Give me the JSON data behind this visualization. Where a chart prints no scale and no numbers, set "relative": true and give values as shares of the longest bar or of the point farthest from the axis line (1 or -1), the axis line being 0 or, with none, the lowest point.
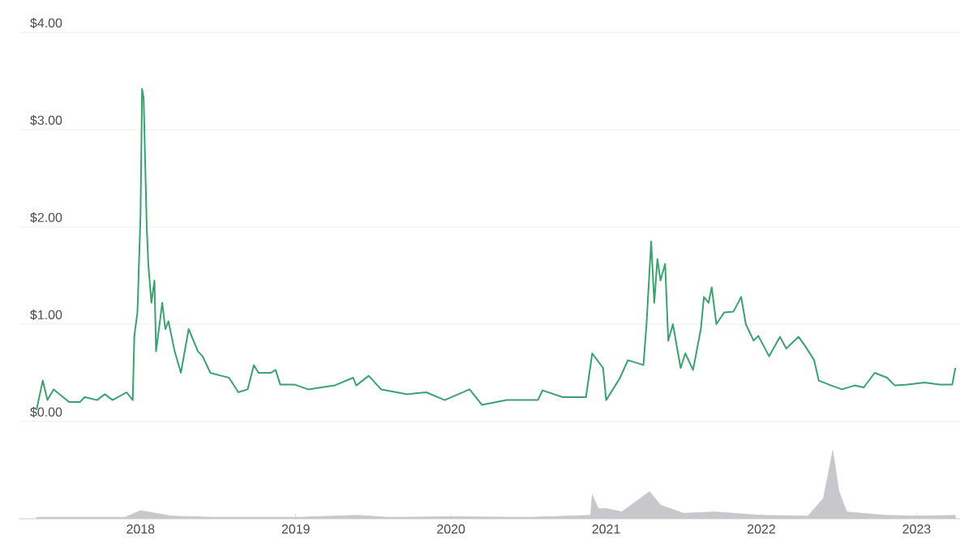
{
  "chart_data": [
    {
      "type": "line",
      "color": "#3aa26e",
      "grid": "y",
      "tick_labels": "y",
      "xlim": [
        2017.22,
        2023.28
      ],
      "ylim": [
        0,
        4
      ],
      "yticks": [
        {
          "value": 0,
          "label": "$0.00"
        },
        {
          "value": 1,
          "label": "$1.00"
        },
        {
          "value": 2,
          "label": "$2.00"
        },
        {
          "value": 3,
          "label": "$3.00"
        },
        {
          "value": 4,
          "label": "$4.00"
        }
      ],
      "x": [
        2017.33,
        2017.37,
        2017.4,
        2017.44,
        2017.54,
        2017.61,
        2017.64,
        2017.72,
        2017.77,
        2017.82,
        2017.91,
        2017.95,
        2017.96,
        2017.98,
        2018.0,
        2018.01,
        2018.02,
        2018.04,
        2018.05,
        2018.07,
        2018.09,
        2018.1,
        2018.14,
        2018.16,
        2018.18,
        2018.22,
        2018.26,
        2018.31,
        2018.37,
        2018.4,
        2018.45,
        2018.52,
        2018.57,
        2018.63,
        2018.69,
        2018.73,
        2018.76,
        2018.84,
        2018.87,
        2018.9,
        2018.99,
        2019.08,
        2019.25,
        2019.37,
        2019.39,
        2019.47,
        2019.55,
        2019.72,
        2019.84,
        2019.96,
        2020.12,
        2020.2,
        2020.36,
        2020.56,
        2020.59,
        2020.72,
        2020.87,
        2020.91,
        2020.98,
        2021.0,
        2021.09,
        2021.14,
        2021.24,
        2021.26,
        2021.29,
        2021.31,
        2021.33,
        2021.35,
        2021.38,
        2021.4,
        2021.43,
        2021.48,
        2021.51,
        2021.56,
        2021.61,
        2021.63,
        2021.66,
        2021.68,
        2021.71,
        2021.76,
        2021.82,
        2021.87,
        2021.9,
        2021.95,
        2021.98,
        2022.05,
        2022.12,
        2022.16,
        2022.24,
        2022.28,
        2022.34,
        2022.37,
        2022.45,
        2022.52,
        2022.6,
        2022.66,
        2022.73,
        2022.81,
        2022.86,
        2022.94,
        2023.05,
        2023.15,
        2023.23,
        2023.25
      ],
      "values": [
        0.12,
        0.42,
        0.22,
        0.33,
        0.2,
        0.2,
        0.25,
        0.22,
        0.28,
        0.22,
        0.3,
        0.22,
        0.88,
        1.12,
        2.12,
        3.42,
        3.33,
        2.0,
        1.62,
        1.22,
        1.45,
        0.72,
        1.22,
        0.95,
        1.03,
        0.72,
        0.5,
        0.95,
        0.72,
        0.67,
        0.5,
        0.47,
        0.45,
        0.3,
        0.33,
        0.58,
        0.5,
        0.5,
        0.53,
        0.38,
        0.38,
        0.33,
        0.37,
        0.45,
        0.37,
        0.47,
        0.33,
        0.28,
        0.3,
        0.22,
        0.33,
        0.17,
        0.22,
        0.22,
        0.32,
        0.25,
        0.25,
        0.7,
        0.55,
        0.22,
        0.45,
        0.63,
        0.58,
        1.0,
        1.85,
        1.22,
        1.67,
        1.45,
        1.62,
        0.83,
        1.0,
        0.55,
        0.7,
        0.53,
        0.95,
        1.28,
        1.22,
        1.38,
        1.0,
        1.12,
        1.13,
        1.28,
        1.0,
        0.83,
        0.88,
        0.67,
        0.87,
        0.75,
        0.87,
        0.78,
        0.63,
        0.42,
        0.37,
        0.33,
        0.37,
        0.35,
        0.5,
        0.45,
        0.37,
        0.38,
        0.4,
        0.38,
        0.38,
        0.55
      ]
    },
    {
      "type": "area",
      "color": "#c8c8cc",
      "relative": true,
      "tick_labels": "x",
      "xlim": [
        2017.22,
        2023.28
      ],
      "xticks": [
        2018,
        2019,
        2020,
        2021,
        2022,
        2023
      ],
      "x": [
        2017.33,
        2017.9,
        2018.0,
        2018.05,
        2018.2,
        2018.5,
        2019.0,
        2019.4,
        2019.6,
        2020.0,
        2020.5,
        2020.9,
        2020.91,
        2020.95,
        2021.0,
        2021.1,
        2021.28,
        2021.35,
        2021.5,
        2021.7,
        2022.0,
        2022.3,
        2022.4,
        2022.46,
        2022.5,
        2022.55,
        2022.8,
        2023.0,
        2023.25
      ],
      "values": [
        0.02,
        0.02,
        0.12,
        0.1,
        0.04,
        0.02,
        0.02,
        0.05,
        0.02,
        0.03,
        0.02,
        0.05,
        0.35,
        0.15,
        0.15,
        0.1,
        0.4,
        0.2,
        0.08,
        0.1,
        0.05,
        0.04,
        0.3,
        1.0,
        0.4,
        0.1,
        0.05,
        0.04,
        0.05
      ]
    }
  ]
}
